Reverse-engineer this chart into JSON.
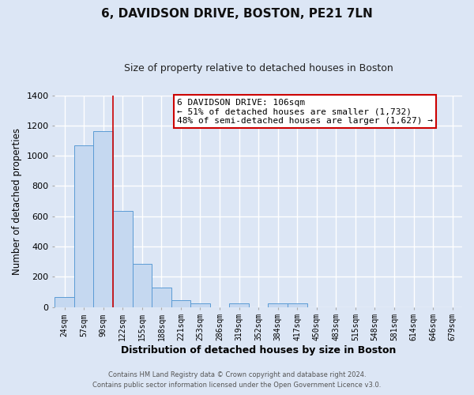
{
  "title": "6, DAVIDSON DRIVE, BOSTON, PE21 7LN",
  "subtitle": "Size of property relative to detached houses in Boston",
  "xlabel": "Distribution of detached houses by size in Boston",
  "ylabel": "Number of detached properties",
  "bar_color": "#c5d8f0",
  "bar_edge_color": "#5b9bd5",
  "plot_bg_color": "#dce6f5",
  "fig_bg_color": "#dce6f5",
  "grid_color": "#ffffff",
  "categories": [
    "24sqm",
    "57sqm",
    "90sqm",
    "122sqm",
    "155sqm",
    "188sqm",
    "221sqm",
    "253sqm",
    "286sqm",
    "319sqm",
    "352sqm",
    "384sqm",
    "417sqm",
    "450sqm",
    "483sqm",
    "515sqm",
    "548sqm",
    "581sqm",
    "614sqm",
    "646sqm",
    "679sqm"
  ],
  "values": [
    65,
    1070,
    1160,
    635,
    285,
    130,
    47,
    22,
    0,
    22,
    0,
    22,
    22,
    0,
    0,
    0,
    0,
    0,
    0,
    0,
    0
  ],
  "ylim": [
    0,
    1400
  ],
  "yticks": [
    0,
    200,
    400,
    600,
    800,
    1000,
    1200,
    1400
  ],
  "red_line_x": 2.5,
  "annotation_title": "6 DAVIDSON DRIVE: 106sqm",
  "annotation_line1": "← 51% of detached houses are smaller (1,732)",
  "annotation_line2": "48% of semi-detached houses are larger (1,627) →",
  "annotation_box_color": "#ffffff",
  "annotation_box_edge_color": "#cc0000",
  "footer1": "Contains HM Land Registry data © Crown copyright and database right 2024.",
  "footer2": "Contains public sector information licensed under the Open Government Licence v3.0."
}
